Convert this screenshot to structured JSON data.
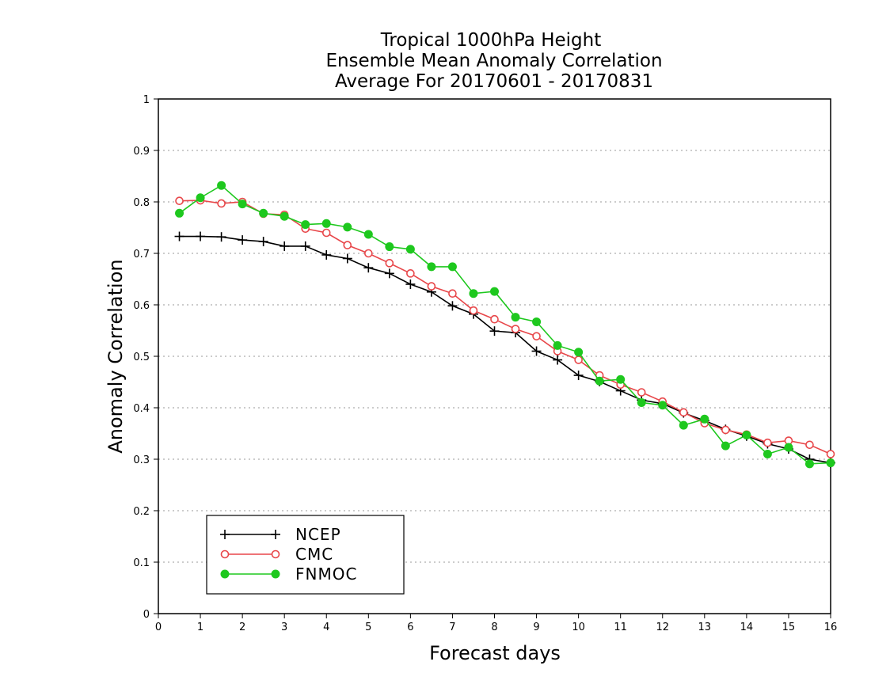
{
  "chart_data": {
    "type": "line",
    "title": [
      "Tropical 1000hPa Height",
      "Ensemble Mean Anomaly Correlation",
      "Average For 20170601 - 20170831"
    ],
    "xlabel": "Forecast days",
    "ylabel": "Anomaly Correlation",
    "xlim": [
      0,
      16
    ],
    "ylim": [
      0,
      1
    ],
    "x_ticks": [
      "0",
      "1",
      "2",
      "3",
      "4",
      "5",
      "6",
      "7",
      "8",
      "9",
      "10",
      "11",
      "12",
      "13",
      "14",
      "15",
      "16"
    ],
    "y_ticks": [
      "0",
      "0.1",
      "0.2",
      "0.3",
      "0.4",
      "0.5",
      "0.6",
      "0.7",
      "0.8",
      "0.9",
      "1"
    ],
    "grid": "horizontal-dotted",
    "legend_position": "bottom-left",
    "x": [
      0.5,
      1,
      1.5,
      2,
      2.5,
      3,
      3.5,
      4,
      4.5,
      5,
      5.5,
      6,
      6.5,
      7,
      7.5,
      8,
      8.5,
      9,
      9.5,
      10,
      10.5,
      11,
      11.5,
      12,
      12.5,
      13,
      13.5,
      14,
      14.5,
      15,
      15.5,
      16
    ],
    "series": [
      {
        "name": "NCEP",
        "color": "#000000",
        "marker": "plus",
        "values": [
          0.733,
          0.733,
          0.732,
          0.726,
          0.723,
          0.714,
          0.714,
          0.697,
          0.69,
          0.672,
          0.661,
          0.64,
          0.625,
          0.598,
          0.582,
          0.549,
          0.546,
          0.51,
          0.493,
          0.463,
          0.451,
          0.433,
          0.415,
          0.408,
          0.39,
          0.375,
          0.358,
          0.345,
          0.33,
          0.32,
          0.3,
          0.293
        ]
      },
      {
        "name": "CMC",
        "color": "#e8474a",
        "marker": "open-circle",
        "values": [
          0.802,
          0.803,
          0.797,
          0.8,
          0.777,
          0.775,
          0.748,
          0.74,
          0.716,
          0.7,
          0.681,
          0.661,
          0.636,
          0.622,
          0.589,
          0.572,
          0.553,
          0.539,
          0.51,
          0.493,
          0.463,
          0.445,
          0.43,
          0.412,
          0.391,
          0.37,
          0.357,
          0.348,
          0.332,
          0.336,
          0.328,
          0.31
        ]
      },
      {
        "name": "FNMOC",
        "color": "#1ec81e",
        "marker": "filled-circle",
        "values": [
          0.778,
          0.808,
          0.832,
          0.796,
          0.778,
          0.772,
          0.756,
          0.758,
          0.751,
          0.737,
          0.713,
          0.708,
          0.674,
          0.674,
          0.622,
          0.626,
          0.576,
          0.567,
          0.521,
          0.508,
          0.452,
          0.455,
          0.41,
          0.405,
          0.366,
          0.378,
          0.326,
          0.347,
          0.31,
          0.323,
          0.291,
          0.293
        ]
      }
    ]
  }
}
